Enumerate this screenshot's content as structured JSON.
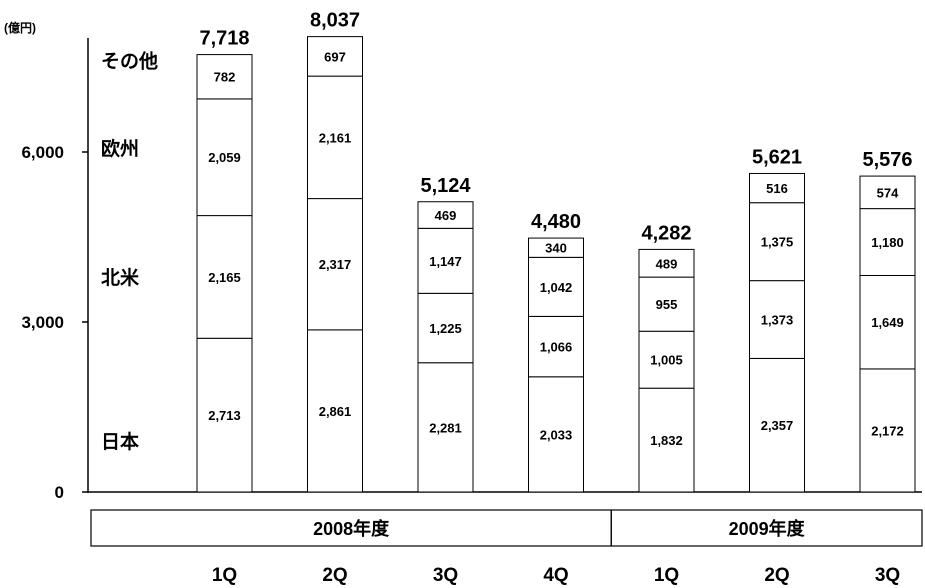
{
  "chart_data": {
    "type": "bar",
    "stacked": true,
    "unit_label": "(億円)",
    "y_ticks": [
      "0",
      "3,000",
      "6,000"
    ],
    "ylim": [
      0,
      8500
    ],
    "series": [
      {
        "name": "日本",
        "values": [
          2713,
          2861,
          2281,
          2033,
          1832,
          2357,
          2172
        ],
        "labels": [
          "2,713",
          "2,861",
          "2,281",
          "2,033",
          "1,832",
          "2,357",
          "2,172"
        ]
      },
      {
        "name": "北米",
        "values": [
          2165,
          2317,
          1225,
          1066,
          1005,
          1373,
          1649
        ],
        "labels": [
          "2,165",
          "2,317",
          "1,225",
          "1,066",
          "1,005",
          "1,373",
          "1,649"
        ]
      },
      {
        "name": "欧州",
        "values": [
          2059,
          2161,
          1147,
          1042,
          955,
          1375,
          1180
        ],
        "labels": [
          "2,059",
          "2,161",
          "1,147",
          "1,042",
          "955",
          "1,375",
          "1,180"
        ]
      },
      {
        "name": "その他",
        "values": [
          782,
          697,
          469,
          340,
          489,
          516,
          574
        ],
        "labels": [
          "782",
          "697",
          "469",
          "340",
          "489",
          "516",
          "574"
        ]
      }
    ],
    "totals": [
      7718,
      8037,
      5124,
      4480,
      4282,
      5621,
      5576
    ],
    "total_labels": [
      "7,718",
      "8,037",
      "5,124",
      "4,480",
      "4,282",
      "5,621",
      "5,576"
    ],
    "categories": [
      "1Q",
      "2Q",
      "3Q",
      "4Q",
      "1Q",
      "2Q",
      "3Q"
    ],
    "year_groups": [
      {
        "label": "2008年度",
        "count": 4
      },
      {
        "label": "2009年度",
        "count": 3
      }
    ],
    "colors": {
      "bar_fill": "#ffffff",
      "stroke": "#000000",
      "text": "#000000"
    }
  }
}
